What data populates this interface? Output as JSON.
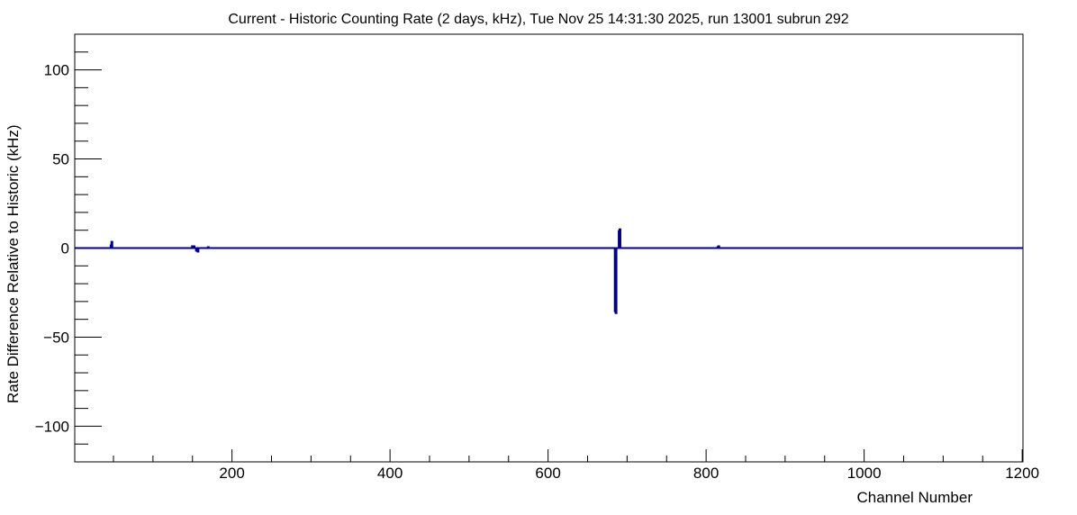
{
  "chart_data": {
    "type": "bar",
    "title": "Current - Historic Counting Rate (2 days, kHz), Tue Nov 25 14:31:30 2025, run 13001 subrun 292",
    "xlabel": "Channel Number",
    "ylabel": "Rate Difference Relative to Historic (kHz)",
    "xlim": [
      1,
      1201
    ],
    "ylim": [
      -120,
      120
    ],
    "x_ticks": [
      200,
      400,
      600,
      800,
      1000,
      1200
    ],
    "y_ticks": [
      -100,
      -50,
      0,
      50,
      100
    ],
    "grid": false,
    "legend": "none",
    "line_color": "#000080",
    "series": [
      {
        "x": [
          47,
          48,
          150,
          152,
          155,
          157,
          170,
          478,
          549,
          685,
          686,
          690,
          691,
          762,
          779,
          815,
          816,
          1010,
          1090
        ],
        "values": [
          2,
          4,
          1.5,
          1.5,
          -2,
          -2.5,
          1,
          0.5,
          -0.5,
          -36,
          -37,
          10,
          11,
          -0.5,
          0.5,
          1,
          1.5,
          -0.5,
          0.5
        ]
      }
    ]
  }
}
